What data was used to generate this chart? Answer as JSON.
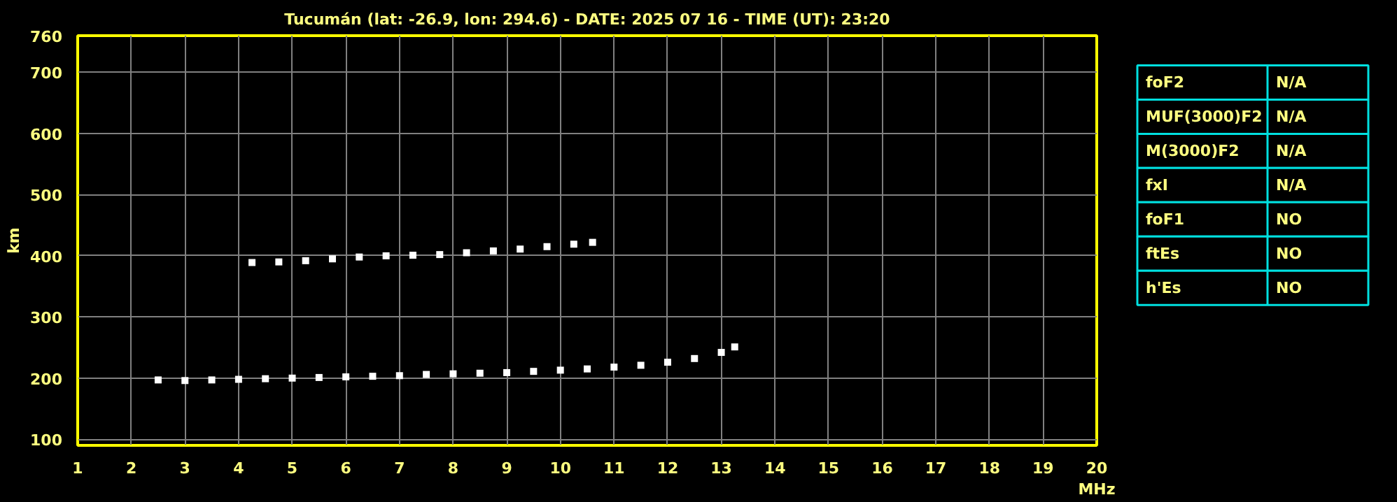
{
  "chart_data": [
    {
      "type": "scatter",
      "title": "Tucumán (lat: -26.9, lon: 294.6) - DATE: 2025 07 16 - TIME (UT): 23:20",
      "xlabel": "MHz",
      "ylabel": "km",
      "marker": "square",
      "grid": true,
      "xlim": [
        1,
        20
      ],
      "xticks": [
        1,
        2,
        3,
        4,
        5,
        6,
        7,
        8,
        9,
        10,
        11,
        12,
        13,
        14,
        15,
        16,
        17,
        18,
        19,
        20
      ],
      "ylim": [
        90,
        760
      ],
      "yticks": [
        100,
        200,
        300,
        400,
        500,
        600,
        700,
        760
      ],
      "series": [
        {
          "color": "#ffffff",
          "x": [
            2.5,
            3.0,
            3.5,
            4.0,
            4.5,
            5.0,
            5.5,
            6.0,
            6.5,
            7.0,
            7.5,
            8.0,
            8.5,
            9.0,
            9.5,
            10.0,
            10.5,
            11.0,
            11.5,
            12.0,
            12.5,
            13.0,
            13.25
          ],
          "values": [
            197,
            196,
            197,
            198,
            199,
            200,
            201,
            202,
            203,
            204,
            206,
            207,
            208,
            209,
            211,
            213,
            215,
            218,
            221,
            226,
            232,
            242,
            251
          ]
        },
        {
          "color": "#ffffff",
          "x": [
            4.25,
            4.75,
            5.25,
            5.75,
            6.25,
            6.75,
            7.25,
            7.75,
            8.25,
            8.75,
            9.25,
            9.75,
            10.25,
            10.6
          ],
          "values": [
            389,
            390,
            392,
            395,
            398,
            400,
            401,
            402,
            405,
            408,
            411,
            415,
            419,
            422
          ]
        }
      ]
    },
    {
      "type": "other",
      "y_categories": [
        "foF2",
        "MUF(3000)F2",
        "M(3000)F2",
        "fxI",
        "foF1",
        "ftEs",
        "h'Es"
      ],
      "cell_labels": [
        [
          "N/A"
        ],
        [
          "N/A"
        ],
        [
          "N/A"
        ],
        [
          "N/A"
        ],
        [
          "NO"
        ],
        [
          "NO"
        ],
        [
          "NO"
        ]
      ]
    }
  ]
}
